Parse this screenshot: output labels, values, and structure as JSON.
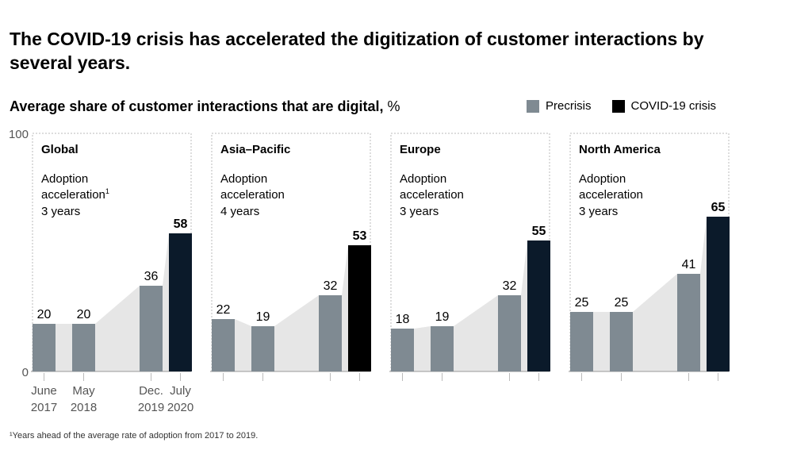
{
  "title": "The COVID-19 crisis has accelerated the digitization of customer interactions by several years.",
  "subtitle": "Average share of customer interactions that are digital,",
  "subtitle_unit": "%",
  "footnote": "¹Years ahead of the average rate of adoption from 2017 to 2019.",
  "colors": {
    "precrisis": "#7f8a92",
    "covid": "#0b1a2a",
    "covid_asia": "#000000",
    "area": "#e6e6e6"
  },
  "chart_data": {
    "type": "bar",
    "ylim": [
      0,
      100
    ],
    "yticks": [
      0,
      100
    ],
    "categories": [
      "June 2017",
      "May 2018",
      "Dec. 2019",
      "July 2020"
    ],
    "category_lines": [
      [
        "June",
        "2017"
      ],
      [
        "May",
        "2018"
      ],
      [
        "Dec.",
        "2019"
      ],
      [
        "July",
        "2020"
      ]
    ],
    "legend": [
      {
        "name": "Precrisis",
        "color": "#7f8a92"
      },
      {
        "name": "COVID-19 crisis",
        "color": "#000000"
      }
    ],
    "legend_placement": "top-right",
    "panels": [
      {
        "name": "Global",
        "label1": "Adoption",
        "label2": "acceleration",
        "sup": "1",
        "label3": "3 years",
        "values": [
          20,
          20,
          36,
          58
        ]
      },
      {
        "name": "Asia–Pacific",
        "label1": "Adoption",
        "label2": "acceleration",
        "sup": "",
        "label3": "4 years",
        "values": [
          22,
          19,
          32,
          53
        ]
      },
      {
        "name": "Europe",
        "label1": "Adoption",
        "label2": "acceleration",
        "sup": "",
        "label3": "3 years",
        "values": [
          18,
          19,
          32,
          55
        ]
      },
      {
        "name": "North America",
        "label1": "Adoption",
        "label2": "acceleration",
        "sup": "",
        "label3": "3 years",
        "values": [
          25,
          25,
          41,
          65
        ]
      }
    ]
  }
}
